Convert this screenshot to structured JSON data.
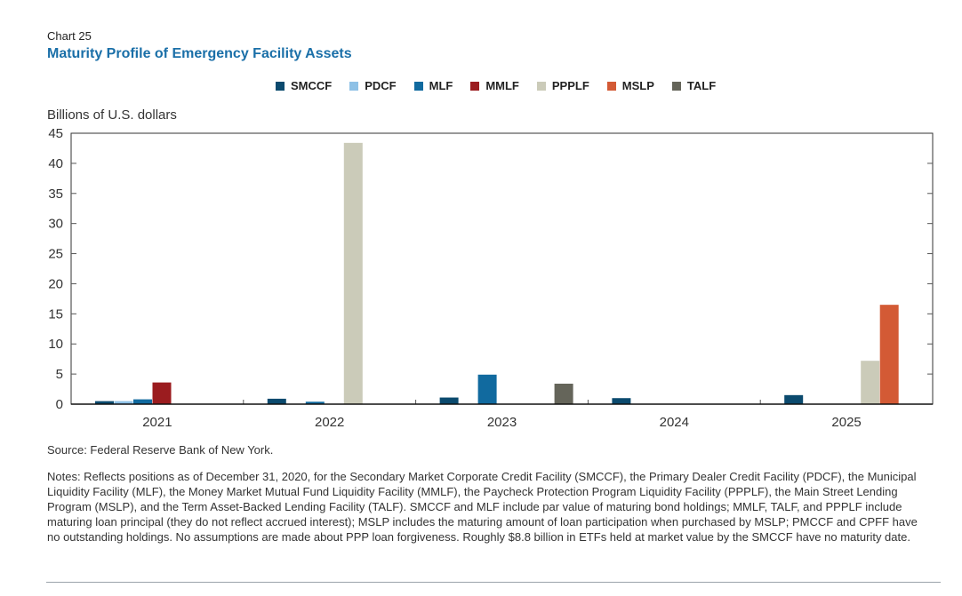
{
  "header": {
    "chart_number": "Chart 25",
    "title": "Maturity Profile of Emergency Facility Assets"
  },
  "footer": {
    "source": "Source: Federal Reserve Bank of New York.",
    "notes": "Notes: Reflects positions as of December 31, 2020, for the Secondary Market Corporate Credit Facility (SMCCF), the Primary Dealer Credit Facility (PDCF), the Municipal Liquidity Facility (MLF), the Money Market Mutual Fund Liquidity Facility (MMLF), the Paycheck Protection Program Liquidity Facility (PPPLF), the Main Street Lending Program (MSLP), and the Term Asset-Backed Lending Facility (TALF). SMCCF and MLF include par value of maturing bond holdings; MMLF, TALF, and PPPLF include maturing loan principal (they do not reflect accrued interest); MSLP includes the maturing amount of loan participation when purchased by MSLP; PMCCF and CPFF have no outstanding holdings. No assumptions are made about PPP loan forgiveness. Roughly $8.8 billion in ETFs held at market value by the SMCCF have no maturity date."
  },
  "chart_data": {
    "type": "bar",
    "title": "Maturity Profile of Emergency Facility Assets",
    "xlabel": "",
    "ylabel": "Billions of U.S. dollars",
    "ylim": [
      0,
      45
    ],
    "yticks": [
      "0",
      "5",
      "10",
      "15",
      "20",
      "25",
      "30",
      "35",
      "40",
      "45"
    ],
    "ytick_values": [
      0,
      5,
      10,
      15,
      20,
      25,
      30,
      35,
      40,
      45
    ],
    "grid": false,
    "legend_position": "top-center",
    "categories": [
      "2021",
      "2022",
      "2023",
      "2024",
      "2025"
    ],
    "series": [
      {
        "name": "SMCCF",
        "color": "#0b4a6e",
        "values": [
          0.5,
          0.9,
          1.1,
          1.0,
          1.5
        ]
      },
      {
        "name": "PDCF",
        "color": "#8ec1e6",
        "values": [
          0.5,
          0,
          0,
          0,
          0
        ]
      },
      {
        "name": "MLF",
        "color": "#116a9f",
        "values": [
          0.8,
          0.4,
          4.9,
          0,
          0
        ]
      },
      {
        "name": "MMLF",
        "color": "#9b1c1f",
        "values": [
          3.6,
          0,
          0,
          0,
          0
        ]
      },
      {
        "name": "PPPLF",
        "color": "#cbcbb9",
        "values": [
          0,
          43.4,
          0,
          0,
          7.2
        ]
      },
      {
        "name": "MSLP",
        "color": "#d35a35",
        "values": [
          0,
          0,
          0,
          0,
          16.5
        ]
      },
      {
        "name": "TALF",
        "color": "#65655a",
        "values": [
          0,
          0,
          3.4,
          0,
          0
        ]
      }
    ]
  }
}
